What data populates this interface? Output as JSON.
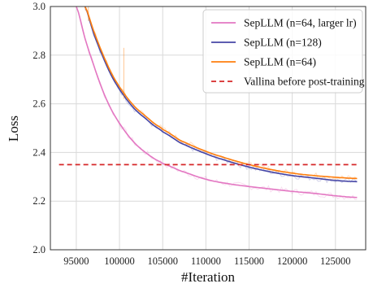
{
  "chart_data": {
    "type": "line",
    "title": "",
    "xlabel": "#Iteration",
    "ylabel": "Loss",
    "xlim": [
      92000,
      128500
    ],
    "ylim": [
      2.0,
      3.0
    ],
    "xticks": [
      95000,
      100000,
      105000,
      110000,
      115000,
      120000,
      125000
    ],
    "yticks": [
      2.0,
      2.2,
      2.4,
      2.6,
      2.8,
      3.0
    ],
    "xtick_labels": [
      "95000",
      "100000",
      "105000",
      "110000",
      "115000",
      "120000",
      "125000"
    ],
    "ytick_labels": [
      "2.0",
      "2.2",
      "2.4",
      "2.6",
      "2.8",
      "3.0"
    ],
    "grid": true,
    "legend_position": "top-right",
    "series": [
      {
        "name": "SepLLM (n=64, larger lr)",
        "color": "#e377c2",
        "style": "solid",
        "x": [
          95000,
          96000,
          97000,
          98000,
          99000,
          100000,
          101000,
          102000,
          103000,
          104000,
          105000,
          107000,
          110000,
          112500,
          115000,
          117500,
          120000,
          122500,
          125000,
          127500
        ],
        "y": [
          3.0,
          2.87,
          2.76,
          2.66,
          2.58,
          2.52,
          2.47,
          2.43,
          2.4,
          2.375,
          2.355,
          2.325,
          2.29,
          2.272,
          2.26,
          2.25,
          2.24,
          2.232,
          2.222,
          2.215
        ]
      },
      {
        "name": "SepLLM (n=128)",
        "color": "#4646a6",
        "style": "solid",
        "x": [
          96000,
          97000,
          98000,
          99000,
          100000,
          101000,
          102000,
          103000,
          104000,
          105000,
          107000,
          110000,
          112500,
          115000,
          117500,
          120000,
          122500,
          125000,
          127500
        ],
        "y": [
          3.0,
          2.89,
          2.8,
          2.72,
          2.66,
          2.61,
          2.57,
          2.54,
          2.51,
          2.485,
          2.44,
          2.395,
          2.365,
          2.34,
          2.32,
          2.305,
          2.295,
          2.285,
          2.28
        ]
      },
      {
        "name": "SepLLM (n=64)",
        "color": "#ff7f0e",
        "style": "solid",
        "x": [
          96000,
          97000,
          98000,
          99000,
          100000,
          101000,
          102000,
          103000,
          104000,
          105000,
          107000,
          110000,
          112500,
          115000,
          117500,
          120000,
          122500,
          125000,
          127500
        ],
        "y": [
          3.0,
          2.9,
          2.81,
          2.73,
          2.67,
          2.62,
          2.58,
          2.55,
          2.52,
          2.495,
          2.45,
          2.405,
          2.375,
          2.35,
          2.33,
          2.315,
          2.305,
          2.298,
          2.293
        ]
      },
      {
        "name": "Vallina before post-training",
        "color": "#d62728",
        "style": "dashed",
        "x": [
          93000,
          127500
        ],
        "y": [
          2.35,
          2.35
        ]
      }
    ]
  }
}
